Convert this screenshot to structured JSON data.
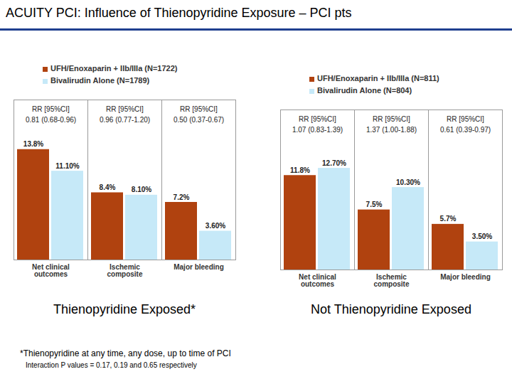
{
  "title": "ACUITY PCI: Influence of Thienopyridine Exposure – PCI pts",
  "chart_data": [
    {
      "type": "bar",
      "subtitle": "Thienopyridine Exposed*",
      "categories": [
        "Net clinical outcomes",
        "Ischemic composite",
        "Major bleeding"
      ],
      "series": [
        {
          "name": "UFH/Enoxaparin + IIb/IIIa (N=1722)",
          "color": "#b0420f",
          "values": [
            13.8,
            8.4,
            7.2
          ],
          "value_labels": [
            "13.8%",
            "8.4%",
            "7.2%"
          ]
        },
        {
          "name": "Bivalirudin Alone (N=1789)",
          "color": "#c6e9f8",
          "values": [
            11.1,
            8.1,
            3.6
          ],
          "value_labels": [
            "11.10%",
            "8.10%",
            "3.60%"
          ]
        }
      ],
      "annotations": [
        [
          "RR [95%CI]",
          "0.81 (0.68-0.96)"
        ],
        [
          "RR [95%CI]",
          "0.96 (0.77-1.20)"
        ],
        [
          "RR [95%CI]",
          "0.50 (0.37-0.67)"
        ]
      ],
      "ylim": [
        0,
        20
      ],
      "data_labels": true,
      "tick_labels": "x",
      "legend": "top"
    },
    {
      "type": "bar",
      "subtitle": "Not Thienopyridine Exposed",
      "categories": [
        "Net clinical outcomes",
        "Ischemic composite",
        "Major bleeding"
      ],
      "series": [
        {
          "name": "UFH/Enoxaparin + IIb/IIIa (N=811)",
          "color": "#b0420f",
          "values": [
            11.8,
            7.5,
            5.7
          ],
          "value_labels": [
            "11.8%",
            "7.5%",
            "5.7%"
          ]
        },
        {
          "name": "Bivalirudin Alone (N=804)",
          "color": "#c6e9f8",
          "values": [
            12.7,
            10.3,
            3.5
          ],
          "value_labels": [
            "12.70%",
            "10.30%",
            "3.50%"
          ]
        }
      ],
      "annotations": [
        [
          "RR [95%CI]",
          "1.07 (0.83-1.39)"
        ],
        [
          "RR [95%CI]",
          "1.37 (1.00-1.88)"
        ],
        [
          "RR [95%CI]",
          "0.61 (0.39-0.97)"
        ]
      ],
      "ylim": [
        0,
        20
      ],
      "data_labels": true,
      "tick_labels": "x",
      "legend": "top"
    }
  ],
  "footnotes": [
    "*Thienopyridine at any time, any dose, up to time of PCI",
    "Interaction P values = 0.17, 0.19 and 0.65 respectively"
  ]
}
